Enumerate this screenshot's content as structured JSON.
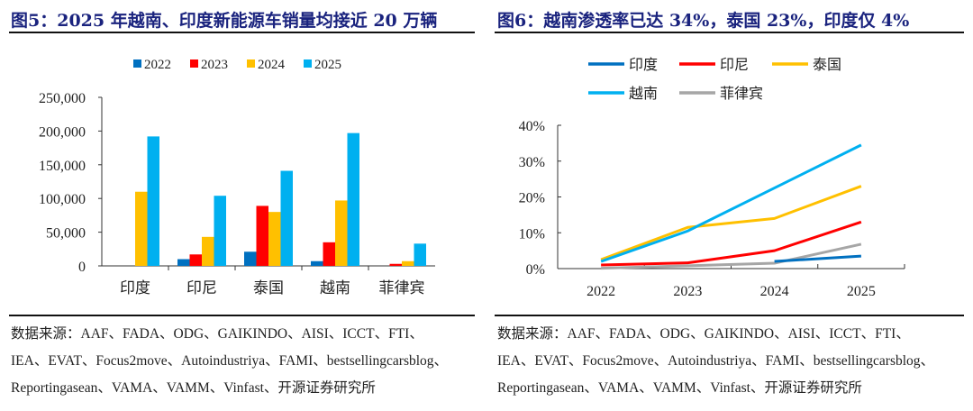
{
  "left": {
    "title": "图5：2025 年越南、印度新能源车销量均接近 20 万辆",
    "source_lines": [
      "数据来源：AAF、FADA、ODG、GAIKINDO、AISI、ICCT、FTI、",
      "IEA、EVAT、Focus2move、Autoindustriya、FAMI、bestsellingcarsblog、",
      "Reportingasean、VAMA、VAMM、Vinfast、开源证券研究所"
    ]
  },
  "right": {
    "title": "图6：越南渗透率已达 34%，泰国 23%，印度仅 4%",
    "source_lines": [
      "数据来源：AAF、FADA、ODG、GAIKINDO、AISI、ICCT、FTI、",
      "IEA、EVAT、Focus2move、Autoindustriya、FAMI、bestsellingcarsblog、",
      "Reportingasean、VAMA、VAMM、Vinfast、开源证券研究所"
    ]
  },
  "chart_data": [
    {
      "type": "bar",
      "categories": [
        "印度",
        "印尼",
        "泰国",
        "越南",
        "菲律宾"
      ],
      "series": [
        {
          "name": "2022",
          "color": "#0070c0",
          "values": [
            0,
            10000,
            21000,
            7000,
            0
          ]
        },
        {
          "name": "2023",
          "color": "#ff0000",
          "values": [
            0,
            17000,
            89000,
            35000,
            3000
          ]
        },
        {
          "name": "2024",
          "color": "#ffc000",
          "values": [
            110000,
            43000,
            80000,
            97000,
            7000
          ]
        },
        {
          "name": "2025",
          "color": "#00b0f0",
          "values": [
            192000,
            104000,
            141000,
            197000,
            33000
          ]
        }
      ],
      "yticks": [
        "0",
        "50,000",
        "100,000",
        "150,000",
        "200,000",
        "250,000"
      ],
      "ylim": [
        0,
        250000
      ],
      "legend": "top",
      "grid": false
    },
    {
      "type": "line",
      "x": [
        "2022",
        "2023",
        "2024",
        "2025"
      ],
      "series": [
        {
          "name": "印度",
          "color": "#0070c0",
          "values": [
            null,
            null,
            2.0,
            3.5
          ]
        },
        {
          "name": "印尼",
          "color": "#ff0000",
          "values": [
            1.0,
            1.6,
            5.0,
            13.0
          ]
        },
        {
          "name": "泰国",
          "color": "#ffc000",
          "values": [
            2.5,
            11.5,
            14.0,
            23.0
          ]
        },
        {
          "name": "越南",
          "color": "#00b0f0",
          "values": [
            2.0,
            10.5,
            22.5,
            34.5
          ]
        },
        {
          "name": "菲律宾",
          "color": "#a6a6a6",
          "values": [
            0.1,
            0.8,
            1.5,
            6.8
          ]
        }
      ],
      "yticks": [
        "0%",
        "10%",
        "20%",
        "30%",
        "40%"
      ],
      "ylim": [
        0,
        40
      ],
      "legend": "top",
      "grid": false
    }
  ]
}
